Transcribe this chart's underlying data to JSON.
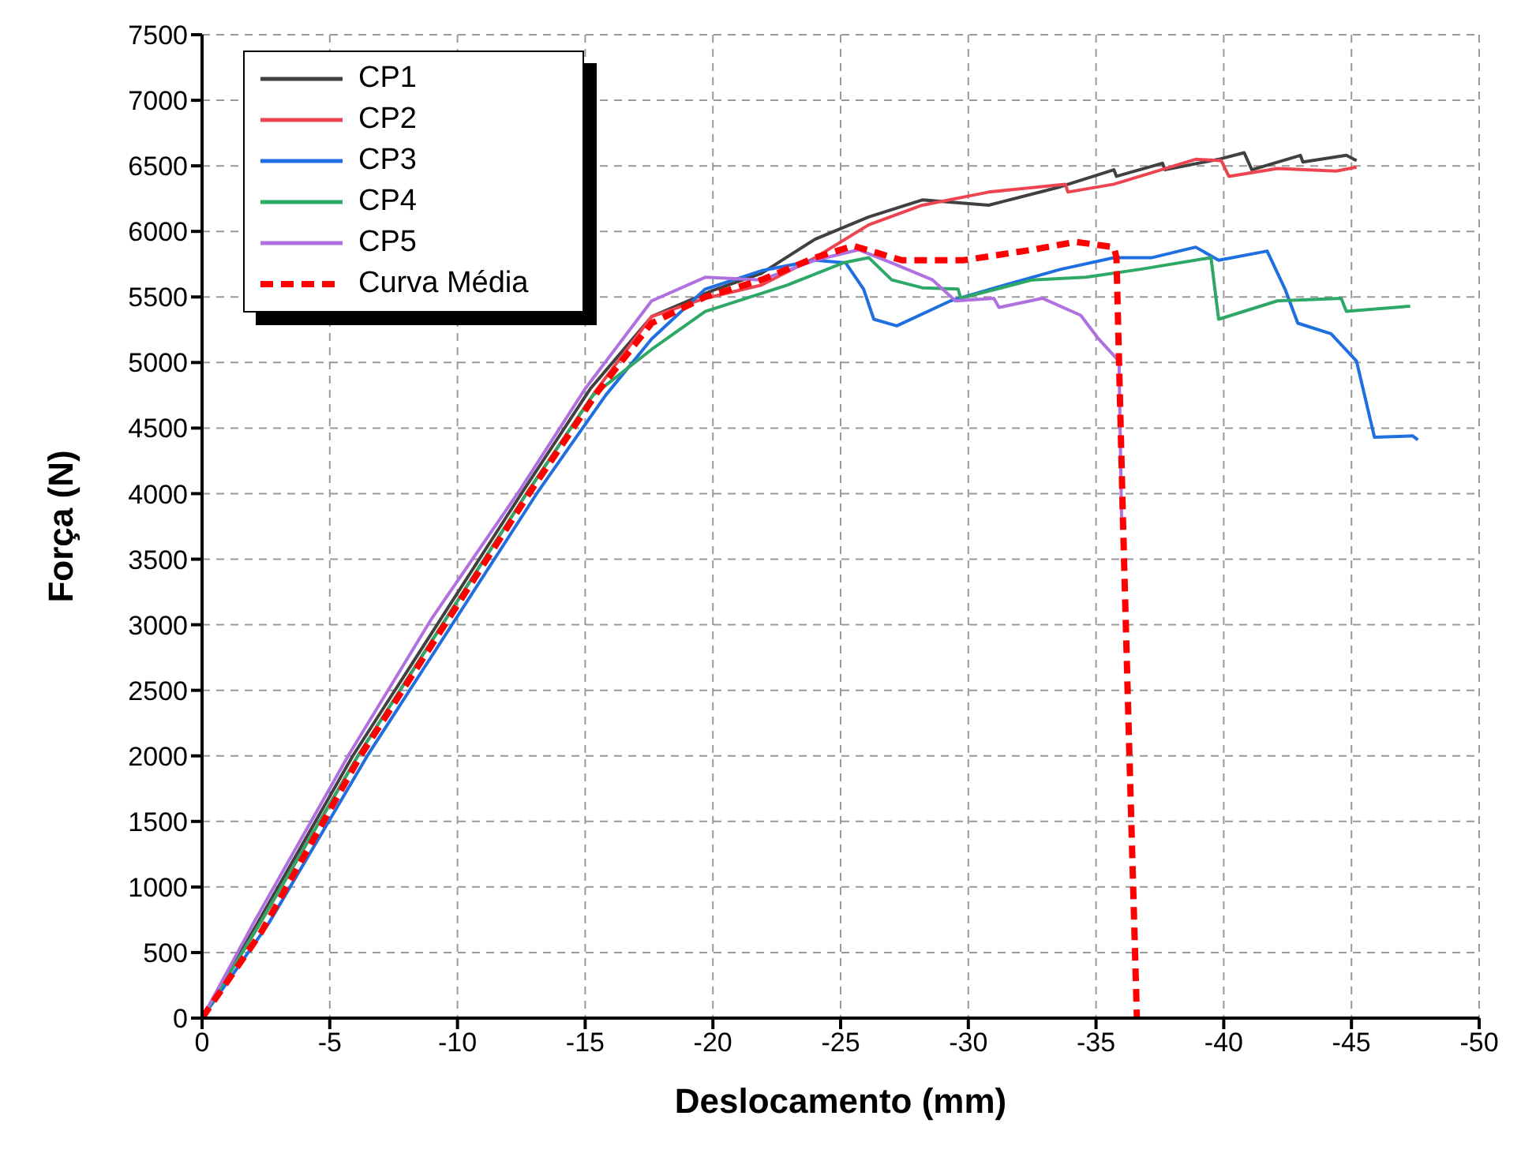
{
  "chart_data": {
    "type": "line",
    "xlabel": "Deslocamento (mm)",
    "ylabel": "Força (N)",
    "xlim": [
      0,
      -50
    ],
    "xticks": [
      0,
      -5,
      -10,
      -15,
      -20,
      -25,
      -30,
      -35,
      -40,
      -45,
      -50
    ],
    "ylim": [
      0,
      7500
    ],
    "yticks": [
      0,
      500,
      1000,
      1500,
      2000,
      2500,
      3000,
      3500,
      4000,
      4500,
      5000,
      5500,
      6000,
      6500,
      7000,
      7500
    ],
    "grid": true,
    "legend": "top left",
    "marker": "none",
    "series": [
      {
        "name": "CP1",
        "color": "#404040",
        "x": [
          0,
          -2.1,
          -5.9,
          -12.5,
          -15.2,
          -17.6,
          -20,
          -21.9,
          -24,
          -26.1,
          -28.2,
          -30.8,
          -33.6,
          -35.7,
          -35.8,
          -37.6,
          -37.7,
          -39.8,
          -40.8,
          -41.1,
          -43,
          -43.1,
          -44.8,
          -45.2
        ],
        "values": [
          0,
          700,
          2000,
          4000,
          4800,
          5350,
          5550,
          5680,
          5940,
          6110,
          6240,
          6200,
          6340,
          6470,
          6420,
          6520,
          6470,
          6550,
          6600,
          6470,
          6580,
          6530,
          6580,
          6540
        ]
      },
      {
        "name": "CP2",
        "color": "#ee4450",
        "x": [
          0,
          -2.2,
          -6.1,
          -12.7,
          -15.4,
          -17.6,
          -19.7,
          -21.9,
          -24,
          -26.1,
          -28.2,
          -30.8,
          -33.8,
          -33.9,
          -35.7,
          -38.9,
          -39.9,
          -40.2,
          -42.1,
          -44.4,
          -45.2
        ],
        "values": [
          0,
          700,
          2000,
          4000,
          4780,
          5350,
          5490,
          5590,
          5800,
          6050,
          6200,
          6300,
          6360,
          6300,
          6360,
          6550,
          6540,
          6420,
          6480,
          6460,
          6490
        ]
      },
      {
        "name": "CP3",
        "color": "#1f6fe0",
        "x": [
          0,
          -2.6,
          -6.5,
          -13.1,
          -15.8,
          -17.6,
          -19.7,
          -21.9,
          -24,
          -25.2,
          -25.9,
          -26.3,
          -27.2,
          -29.3,
          -31.4,
          -33.6,
          -35.7,
          -37.2,
          -38.9,
          -39.8,
          -41.7,
          -42.4,
          -42.9,
          -44.2,
          -45.2,
          -45.9,
          -47.4,
          -47.6
        ],
        "values": [
          0,
          720,
          2010,
          4000,
          4750,
          5180,
          5560,
          5700,
          5780,
          5760,
          5560,
          5330,
          5280,
          5470,
          5590,
          5710,
          5800,
          5800,
          5880,
          5780,
          5850,
          5560,
          5300,
          5220,
          5010,
          4430,
          4440,
          4410
        ]
      },
      {
        "name": "CP4",
        "color": "#2ea866",
        "x": [
          0,
          -2.2,
          -6.1,
          -12.7,
          -15.3,
          -17.6,
          -19.7,
          -22.9,
          -25.1,
          -26.1,
          -27,
          -28.2,
          -29.6,
          -29.7,
          -32.5,
          -34.6,
          -36.7,
          -39.5,
          -39.8,
          -42.1,
          -44.6,
          -44.8,
          -47.3
        ],
        "values": [
          0,
          700,
          2000,
          4000,
          4750,
          5100,
          5390,
          5590,
          5760,
          5800,
          5630,
          5570,
          5560,
          5490,
          5630,
          5650,
          5710,
          5800,
          5330,
          5470,
          5490,
          5390,
          5430
        ]
      },
      {
        "name": "CP5",
        "color": "#b070e0",
        "x": [
          0,
          -2,
          -5.75,
          -9,
          -12.35,
          -15,
          -17.6,
          -19.7,
          -21.9,
          -24,
          -25.7,
          -27,
          -28.6,
          -29.5,
          -31,
          -31.2,
          -32.9,
          -34.4,
          -35.1,
          -35.9,
          -36
        ],
        "values": [
          0,
          720,
          2010,
          3050,
          4000,
          4800,
          5470,
          5650,
          5630,
          5780,
          5860,
          5760,
          5630,
          5470,
          5490,
          5420,
          5490,
          5360,
          5180,
          5010,
          3820
        ]
      },
      {
        "name": "Curva Média",
        "color": "#ff0000",
        "line_style": "dashed",
        "x": [
          0,
          -2.3,
          -6.2,
          -12.8,
          -15.5,
          -17.6,
          -19.7,
          -21.9,
          -24,
          -25.5,
          -27.4,
          -29.8,
          -32.5,
          -34.2,
          -35.7,
          -35.8,
          -36.05,
          -36.3,
          -36.6
        ],
        "values": [
          0,
          650,
          2000,
          4000,
          4780,
          5300,
          5500,
          5630,
          5800,
          5890,
          5780,
          5780,
          5860,
          5920,
          5880,
          5800,
          3830,
          2050,
          0
        ]
      }
    ]
  }
}
